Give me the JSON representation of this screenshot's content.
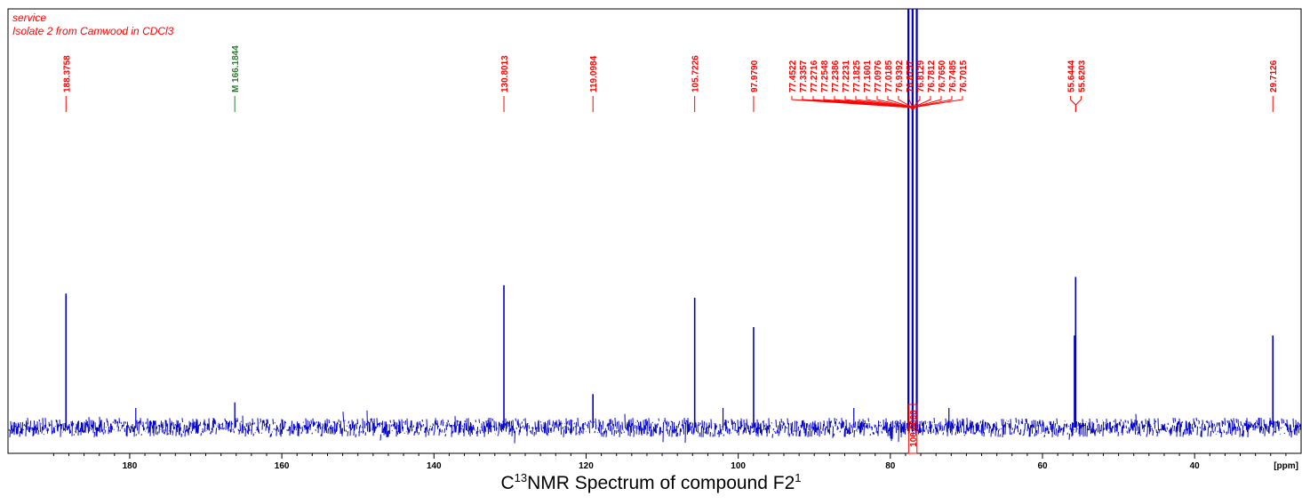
{
  "header": {
    "line1": "service",
    "line2": "Isolate 2 from Camwood in CDCl3"
  },
  "caption": {
    "main": "C",
    "sup1": "13",
    "rest": "NMR Spectrum of compound F2",
    "sup2": "1"
  },
  "colors": {
    "spectrum": "#0000cc",
    "peak_label": "#ff0000",
    "marker_label": "#2e7d32",
    "axis": "#000000",
    "integral_box": "#ff0000"
  },
  "chart_data": {
    "type": "line",
    "xlabel": "[ppm]",
    "xlim": [
      196,
      26
    ],
    "x_reversed": true,
    "x_ticks": [
      180,
      160,
      140,
      120,
      100,
      80,
      60,
      40
    ],
    "x_tick_labels": [
      "180",
      "160",
      "140",
      "120",
      "100",
      "80",
      "60",
      "40"
    ],
    "peaks": [
      {
        "ppm": 188.3758,
        "label": "188.3758",
        "intensity": 0.32
      },
      {
        "ppm": 130.8013,
        "label": "130.8013",
        "intensity": 0.34
      },
      {
        "ppm": 119.0984,
        "label": "119.0984",
        "intensity": 0.08
      },
      {
        "ppm": 105.7226,
        "label": "105.7226",
        "intensity": 0.31
      },
      {
        "ppm": 97.979,
        "label": "97.9790",
        "intensity": 0.24
      },
      {
        "ppm": 55.6444,
        "label": "55.6444",
        "intensity": 0.36
      },
      {
        "ppm": 55.6203,
        "label": "55.6203",
        "intensity": 0.22
      },
      {
        "ppm": 29.7126,
        "label": "29.7126",
        "intensity": 0.22
      }
    ],
    "marker": {
      "ppm": 166.1844,
      "label": "M 166.1844",
      "intensity": 0.06
    },
    "solvent_peaks": [
      {
        "ppm": 77.4522,
        "label": "77.4522"
      },
      {
        "ppm": 77.3357,
        "label": "77.3357"
      },
      {
        "ppm": 77.2716,
        "label": "77.2716"
      },
      {
        "ppm": 77.2548,
        "label": "77.2548"
      },
      {
        "ppm": 77.2386,
        "label": "77.2386"
      },
      {
        "ppm": 77.2231,
        "label": "77.2231"
      },
      {
        "ppm": 77.1825,
        "label": "77.1825"
      },
      {
        "ppm": 77.1601,
        "label": "77.1601"
      },
      {
        "ppm": 77.0976,
        "label": "77.0976"
      },
      {
        "ppm": 77.0185,
        "label": "77.0185"
      },
      {
        "ppm": 76.9392,
        "label": "76.9392"
      },
      {
        "ppm": 76.8757,
        "label": "76.8757"
      },
      {
        "ppm": 76.8129,
        "label": "76.8129"
      },
      {
        "ppm": 76.7812,
        "label": "76.7812"
      },
      {
        "ppm": 76.765,
        "label": "76.7650"
      },
      {
        "ppm": 76.7485,
        "label": "76.7485"
      },
      {
        "ppm": 76.7015,
        "label": "76.7015"
      }
    ],
    "integral": {
      "ppm_from": 77.6,
      "ppm_to": 76.5,
      "label": "100.0000"
    },
    "noise_peaks_ppm": [
      179.2,
      102.0,
      84.8,
      72.3
    ]
  }
}
